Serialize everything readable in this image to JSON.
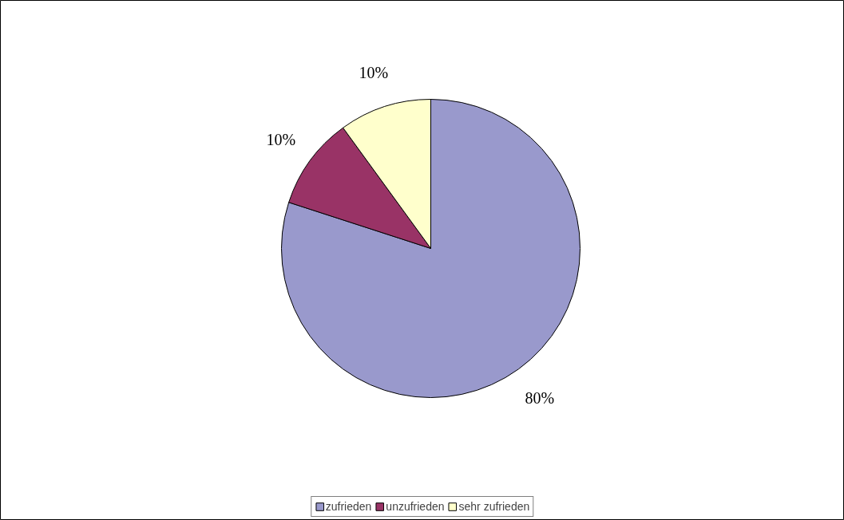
{
  "chart_data": {
    "type": "pie",
    "categories": [
      "zufrieden",
      "unzufrieden",
      "sehr zufrieden"
    ],
    "values": [
      80,
      10,
      10
    ],
    "colors": [
      "#9999cc",
      "#993366",
      "#ffffcc"
    ],
    "value_labels": [
      "80%",
      "10%",
      "10%"
    ],
    "legend": "bottom"
  }
}
